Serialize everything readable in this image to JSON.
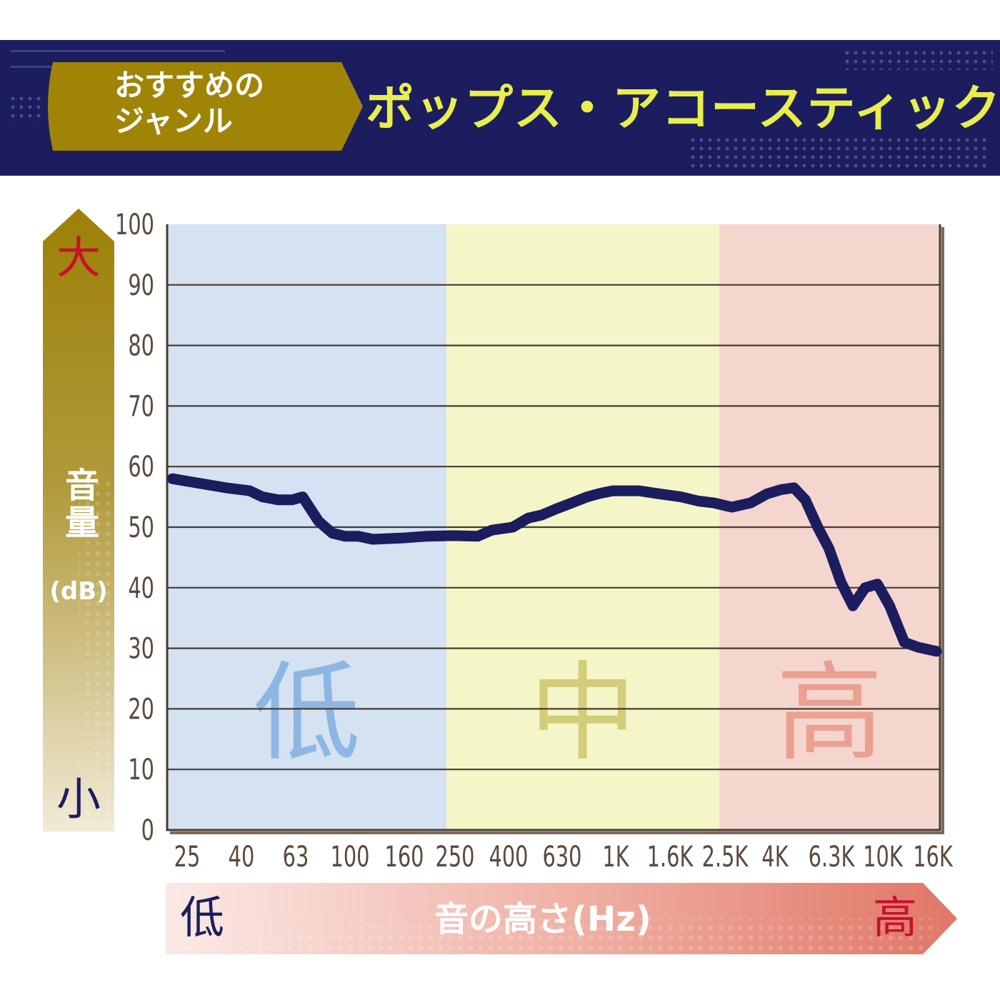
{
  "header": {
    "badge_line1": "おすすめの",
    "badge_line2": "ジャンル",
    "genre": "ポップス・アコースティック"
  },
  "y_axis": {
    "title": "音量",
    "unit": "(dB)",
    "high_label": "大",
    "low_label": "小"
  },
  "x_axis": {
    "title": "音の高さ(Hz)",
    "low_label": "低",
    "high_label": "高"
  },
  "colors": {
    "header_bg": "#1b1d5f",
    "badge": "#a08405",
    "title_yellow": "#e9ee4a",
    "curve": "#1b1d5f",
    "zone_low": "#d4e2f2",
    "zone_mid": "#f4f6c8",
    "zone_high": "#f4d6cf",
    "axis": "#5a4a3c"
  },
  "chart_data": {
    "type": "line",
    "title": "",
    "xlabel": "音の高さ(Hz)",
    "ylabel": "音量(dB)",
    "x_scale": "log",
    "ylim": [
      0,
      100
    ],
    "y_ticks": [
      "0",
      "10",
      "20",
      "30",
      "40",
      "50",
      "60",
      "70",
      "80",
      "90",
      "100"
    ],
    "x_ticks": [
      "25",
      "40",
      "63",
      "100",
      "160",
      "250",
      "400",
      "630",
      "1K",
      "1.6K",
      "2.5K",
      "4K",
      "6.3K",
      "10K",
      "16K"
    ],
    "zones": [
      {
        "label": "低",
        "from": "25",
        "to": "250",
        "color": "#d4e2f2",
        "text_color": "#8db6e3"
      },
      {
        "label": "中",
        "from": "250",
        "to": "2.5K",
        "color": "#f4f6c8",
        "text_color": "#d3cc7a"
      },
      {
        "label": "高",
        "from": "2.5K",
        "to": "16K",
        "color": "#f4d6cf",
        "text_color": "#eba090"
      }
    ],
    "grid": true,
    "series": [
      {
        "points": [
          [
            22,
            58
          ],
          [
            35,
            56.5
          ],
          [
            43,
            56
          ],
          [
            48,
            55
          ],
          [
            55,
            54.5
          ],
          [
            62,
            54.5
          ],
          [
            68,
            55
          ],
          [
            78,
            51
          ],
          [
            88,
            49
          ],
          [
            98,
            48.5
          ],
          [
            110,
            48.5
          ],
          [
            125,
            48
          ],
          [
            160,
            48.2
          ],
          [
            200,
            48.5
          ],
          [
            250,
            48.6
          ],
          [
            310,
            48.5
          ],
          [
            350,
            49.5
          ],
          [
            420,
            50
          ],
          [
            480,
            51.5
          ],
          [
            540,
            52
          ],
          [
            610,
            53
          ],
          [
            700,
            54
          ],
          [
            800,
            55
          ],
          [
            900,
            55.6
          ],
          [
            1000,
            56
          ],
          [
            1250,
            56
          ],
          [
            1500,
            55.5
          ],
          [
            1800,
            55
          ],
          [
            2100,
            54.3
          ],
          [
            2400,
            54
          ],
          [
            2800,
            53.3
          ],
          [
            3300,
            54
          ],
          [
            3800,
            55.5
          ],
          [
            4300,
            56.2
          ],
          [
            4800,
            56.5
          ],
          [
            5300,
            54.5
          ],
          [
            5900,
            50
          ],
          [
            6500,
            46.5
          ],
          [
            7200,
            41
          ],
          [
            8000,
            37
          ],
          [
            8900,
            40
          ],
          [
            9900,
            40.6
          ],
          [
            11000,
            37
          ],
          [
            12500,
            31
          ],
          [
            14000,
            30.2
          ],
          [
            16500,
            29.5
          ]
        ]
      }
    ]
  }
}
